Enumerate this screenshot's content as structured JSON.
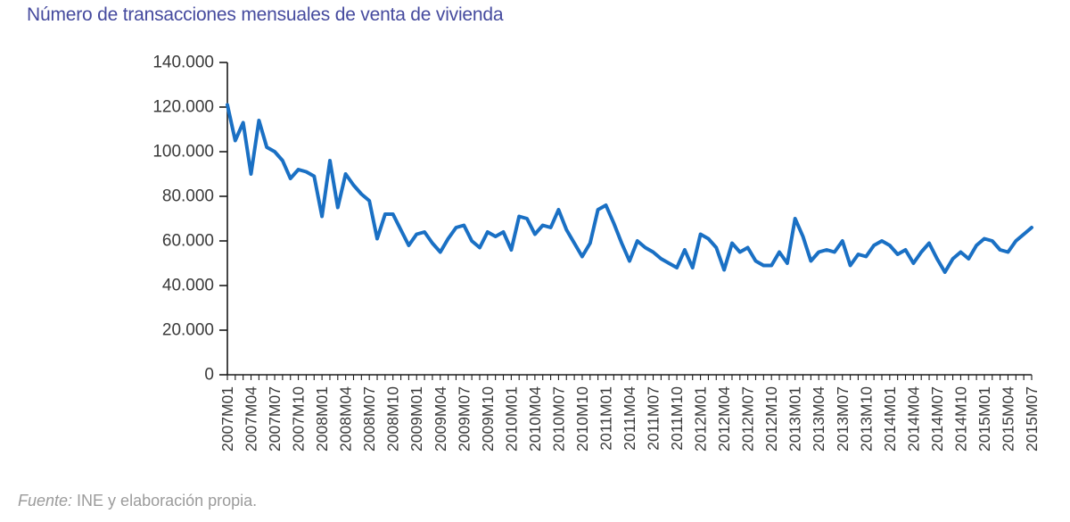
{
  "title": "Número de transacciones mensuales de venta de vivienda",
  "source": {
    "prefix": "Fuente:",
    "text": " INE y elaboración propia."
  },
  "colors": {
    "title": "#454a9e",
    "line": "#1a70c4",
    "axis": "#1a1a1a",
    "tick_text": "#3a3a3a",
    "source_text": "#9b9b9b"
  },
  "chart_data": {
    "type": "line",
    "title": "Número de transacciones mensuales de venta de vivienda",
    "xlabel": "",
    "ylabel": "",
    "ylim": [
      0,
      140000
    ],
    "ytick_step": 20000,
    "ytick_labels": [
      "0",
      "20.000",
      "40.000",
      "60.000",
      "80.000",
      "100.000",
      "120.000",
      "140.000"
    ],
    "xtick_label_every": 3,
    "grid": false,
    "legend_position": "none",
    "categories": [
      "2007M01",
      "2007M02",
      "2007M03",
      "2007M04",
      "2007M05",
      "2007M06",
      "2007M07",
      "2007M08",
      "2007M09",
      "2007M10",
      "2007M11",
      "2007M12",
      "2008M01",
      "2008M02",
      "2008M03",
      "2008M04",
      "2008M05",
      "2008M06",
      "2008M07",
      "2008M08",
      "2008M09",
      "2008M10",
      "2008M11",
      "2008M12",
      "2009M01",
      "2009M02",
      "2009M03",
      "2009M04",
      "2009M05",
      "2009M06",
      "2009M07",
      "2009M08",
      "2009M09",
      "2009M10",
      "2009M11",
      "2009M12",
      "2010M01",
      "2010M02",
      "2010M03",
      "2010M04",
      "2010M05",
      "2010M06",
      "2010M07",
      "2010M08",
      "2010M09",
      "2010M10",
      "2010M11",
      "2010M12",
      "2011M01",
      "2011M02",
      "2011M03",
      "2011M04",
      "2011M05",
      "2011M06",
      "2011M07",
      "2011M08",
      "2011M09",
      "2011M10",
      "2011M11",
      "2011M12",
      "2012M01",
      "2012M02",
      "2012M03",
      "2012M04",
      "2012M05",
      "2012M06",
      "2012M07",
      "2012M08",
      "2012M09",
      "2012M10",
      "2012M11",
      "2012M12",
      "2013M01",
      "2013M02",
      "2013M03",
      "2013M04",
      "2013M05",
      "2013M06",
      "2013M07",
      "2013M08",
      "2013M09",
      "2013M10",
      "2013M11",
      "2013M12",
      "2014M01",
      "2014M02",
      "2014M03",
      "2014M04",
      "2014M05",
      "2014M06",
      "2014M07",
      "2014M08",
      "2014M09",
      "2014M10",
      "2014M11",
      "2014M12",
      "2015M01",
      "2015M02",
      "2015M03",
      "2015M04",
      "2015M05",
      "2015M06",
      "2015M07"
    ],
    "values": [
      121000,
      105000,
      113000,
      90000,
      114000,
      102000,
      100000,
      96000,
      88000,
      92000,
      91000,
      89000,
      71000,
      96000,
      75000,
      90000,
      85000,
      81000,
      78000,
      61000,
      72000,
      72000,
      65000,
      58000,
      63000,
      64000,
      59000,
      55000,
      61000,
      66000,
      67000,
      60000,
      57000,
      64000,
      62000,
      64000,
      56000,
      71000,
      70000,
      63000,
      67000,
      66000,
      74000,
      65000,
      59000,
      53000,
      59000,
      74000,
      76000,
      68000,
      59000,
      51000,
      60000,
      57000,
      55000,
      52000,
      50000,
      48000,
      56000,
      48000,
      63000,
      61000,
      57000,
      47000,
      59000,
      55000,
      57000,
      51000,
      49000,
      49000,
      55000,
      50000,
      70000,
      62000,
      51000,
      55000,
      56000,
      55000,
      60000,
      49000,
      54000,
      53000,
      58000,
      60000,
      58000,
      54000,
      56000,
      50000,
      55000,
      59000,
      52000,
      46000,
      52000,
      55000,
      52000,
      58000,
      61000,
      60000,
      56000,
      55000,
      60000,
      63000,
      66000
    ]
  }
}
